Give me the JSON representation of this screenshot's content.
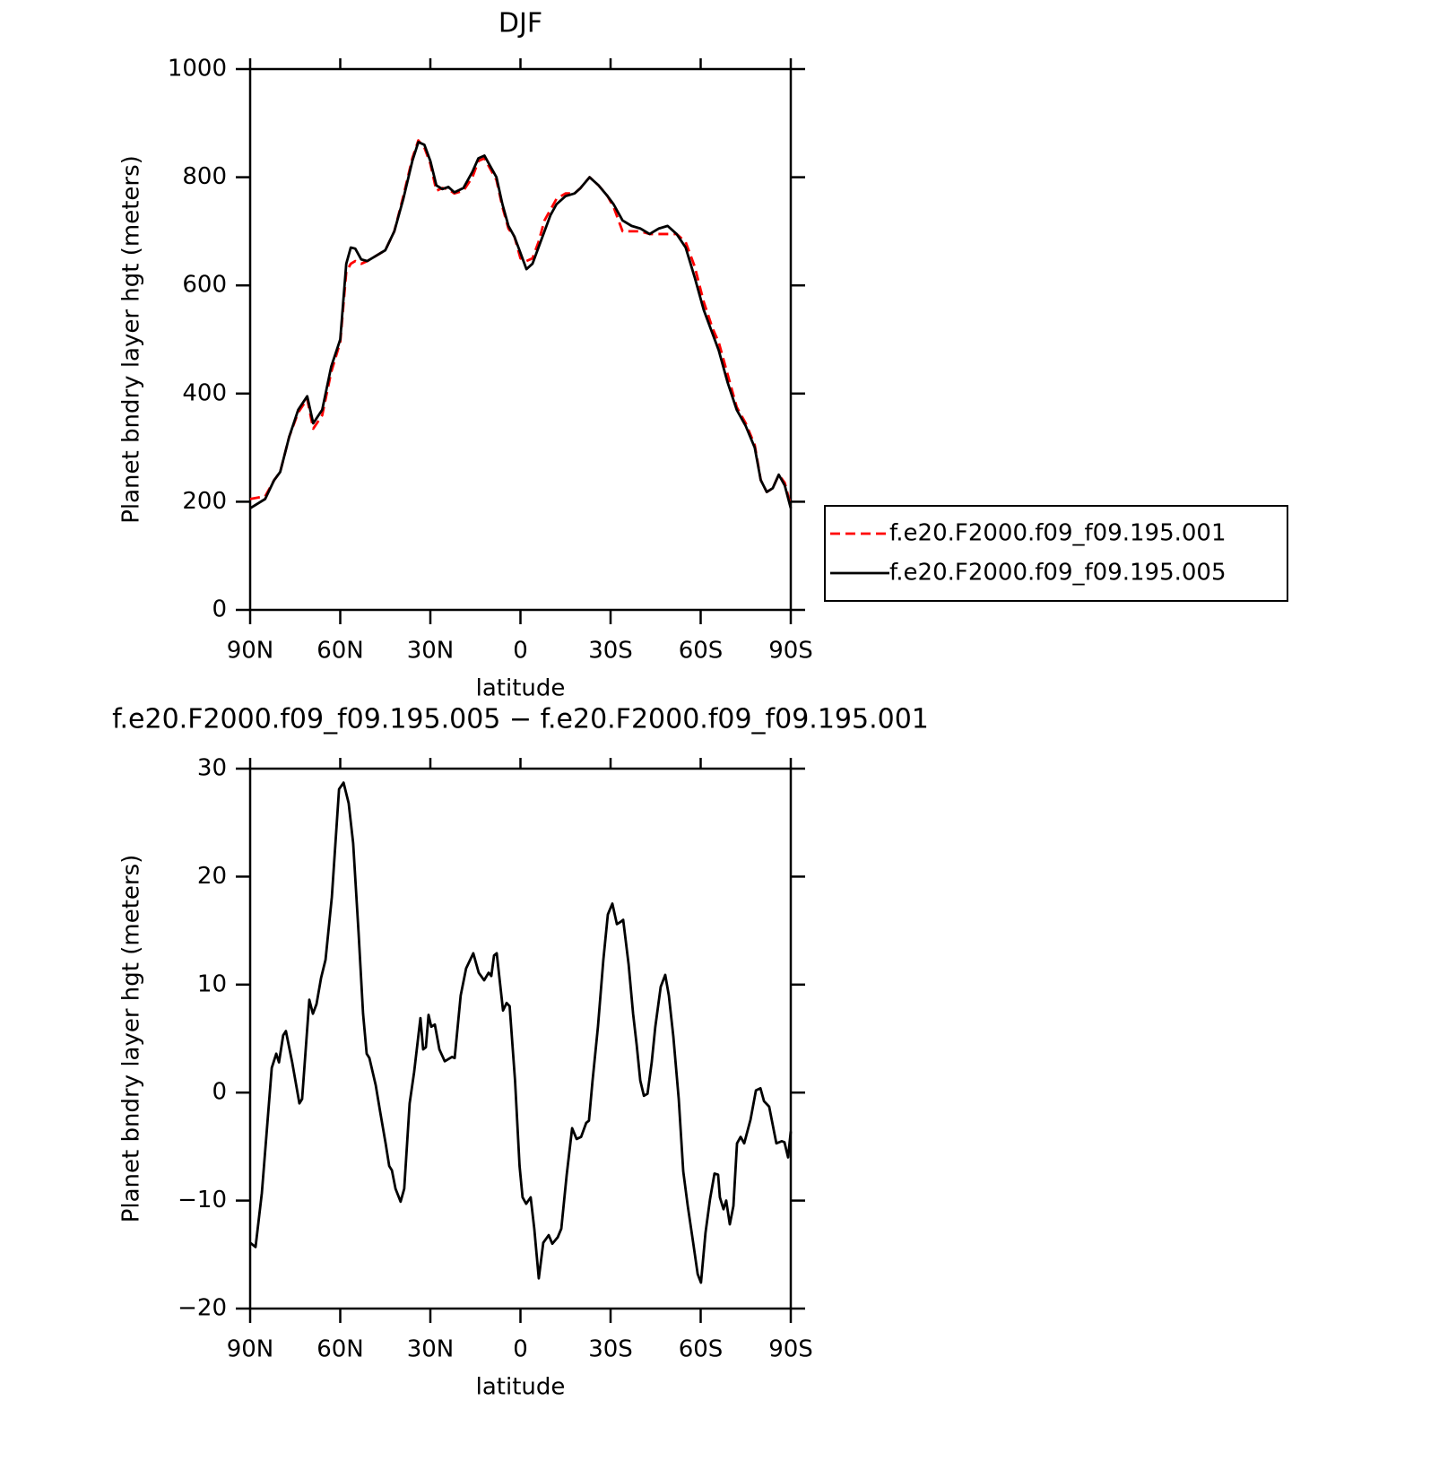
{
  "chart_data": [
    {
      "type": "line",
      "title": "DJF",
      "xlabel": "latitude",
      "ylabel": "Planet bndry layer hgt (meters)",
      "x": [
        90,
        85,
        82,
        80,
        77,
        74,
        71,
        69,
        66,
        63,
        60,
        58,
        56.5,
        55,
        53,
        51,
        48,
        45,
        42,
        39,
        36,
        34,
        32,
        30,
        28,
        26,
        24,
        22,
        19,
        16,
        14,
        12,
        10,
        8,
        6,
        4,
        2,
        0,
        -2,
        -4,
        -6,
        -8,
        -10,
        -12,
        -15,
        -18,
        -20,
        -23,
        -26,
        -29,
        -31,
        -34,
        -37,
        -40,
        -43,
        -46,
        -49,
        -52,
        -55,
        -58,
        -61,
        -64,
        -66,
        -69,
        -72,
        -75,
        -78,
        -80,
        -82,
        -84,
        -86,
        -88,
        -90
      ],
      "series": [
        {
          "name": "f.e20.F2000.f09_f09.195.001",
          "color": "#ff0000",
          "dash": true,
          "values": [
            205,
            210,
            240,
            255,
            320,
            365,
            390,
            335,
            360,
            440,
            495,
            625,
            640,
            645,
            640,
            645,
            655,
            665,
            700,
            765,
            835,
            868,
            855,
            825,
            775,
            780,
            778,
            770,
            775,
            800,
            830,
            835,
            815,
            795,
            745,
            705,
            690,
            650,
            645,
            650,
            680,
            720,
            740,
            760,
            770,
            770,
            780,
            800,
            785,
            765,
            745,
            700,
            700,
            700,
            695,
            695,
            695,
            695,
            680,
            635,
            570,
            520,
            495,
            435,
            375,
            345,
            305,
            240,
            218,
            225,
            250,
            235,
            192
          ]
        },
        {
          "name": "f.e20.F2000.f09_f09.195.005",
          "color": "#000000",
          "dash": false,
          "values": [
            188,
            205,
            240,
            255,
            320,
            370,
            395,
            345,
            370,
            450,
            500,
            640,
            670,
            668,
            648,
            645,
            655,
            665,
            700,
            760,
            830,
            865,
            860,
            830,
            785,
            778,
            782,
            772,
            780,
            810,
            835,
            840,
            820,
            800,
            750,
            710,
            690,
            660,
            630,
            640,
            670,
            700,
            730,
            750,
            765,
            770,
            780,
            800,
            785,
            765,
            750,
            720,
            710,
            705,
            695,
            705,
            710,
            695,
            670,
            615,
            555,
            510,
            480,
            420,
            370,
            340,
            300,
            240,
            218,
            225,
            250,
            230,
            188
          ]
        }
      ],
      "xlim": [
        90,
        -90
      ],
      "ylim": [
        0,
        1000
      ],
      "xticks": [
        {
          "value": 90,
          "label": "90N"
        },
        {
          "value": 60,
          "label": "60N"
        },
        {
          "value": 30,
          "label": "30N"
        },
        0,
        {
          "value": -30,
          "label": "30S"
        },
        {
          "value": -60,
          "label": "60S"
        },
        {
          "value": -90,
          "label": "90S"
        }
      ],
      "yticks": [
        0,
        200,
        400,
        600,
        800,
        1000
      ],
      "legend": "right"
    },
    {
      "type": "line",
      "title": "f.e20.F2000.f09_f09.195.005 − f.e20.F2000.f09_f09.195.001",
      "xlabel": "latitude",
      "ylabel": "Planet bndry layer hgt (meters)",
      "x": [
        90,
        88.2,
        86.1,
        82.8,
        81.3,
        80.4,
        79,
        78.1,
        76,
        73.6,
        72.7,
        70.3,
        69.1,
        67.9,
        66.4,
        64.9,
        62.8,
        60.4,
        58.9,
        57.2,
        55.7,
        53.9,
        52.4,
        51.2,
        50.3,
        48.2,
        46.7,
        44.9,
        43.7,
        42.8,
        41.6,
        39.9,
        38.7,
        36.9,
        35.4,
        33.3,
        32.4,
        31.5,
        30.6,
        29.7,
        28.5,
        27,
        25.2,
        22.8,
        21.9,
        19.9,
        18.1,
        15.7,
        13.9,
        12.1,
        10.6,
        9.7,
        8.8,
        7.9,
        5.8,
        4.6,
        3.6,
        1.8,
        0.3,
        -0.7,
        -1.9,
        -3.4,
        -4.6,
        -6.1,
        -7.6,
        -9.4,
        -10.6,
        -12.4,
        -13.6,
        -15.4,
        -17.2,
        -18.7,
        -20.2,
        -21.9,
        -22.8,
        -24,
        -25.8,
        -27.6,
        -29.1,
        -30.6,
        -32.1,
        -33.3,
        -34.2,
        -36,
        -37.5,
        -38.7,
        -39.9,
        -41.1,
        -42.3,
        -43.7,
        -44.9,
        -46.7,
        -48.2,
        -49.4,
        -50.9,
        -52.7,
        -54.2,
        -55.7,
        -57.5,
        -59,
        -60.1,
        -61.6,
        -63.1,
        -64.6,
        -65.8,
        -66.4,
        -67.6,
        -68.5,
        -69.7,
        -70.9,
        -72.1,
        -73.3,
        -74.5,
        -76.6,
        -78.4,
        -79.9,
        -81.1,
        -82.8,
        -85.2,
        -87,
        -87.9,
        -89.1,
        -90
      ],
      "series": [
        {
          "color": "#000000",
          "dash": false,
          "values": [
            -13.9,
            -14.3,
            -9.3,
            2.3,
            3.6,
            2.8,
            5.3,
            5.7,
            2.8,
            -1.0,
            -0.6,
            8.6,
            7.3,
            8.2,
            10.6,
            12.3,
            18.1,
            28.1,
            28.7,
            26.8,
            23.1,
            14.8,
            7.3,
            3.6,
            3.2,
            0.7,
            -1.8,
            -4.7,
            -6.8,
            -7.2,
            -8.9,
            -10.1,
            -8.9,
            -1.0,
            1.9,
            6.9,
            4.0,
            4.2,
            7.2,
            6.1,
            6.3,
            4.0,
            2.9,
            3.3,
            3.2,
            9.0,
            11.5,
            12.9,
            11.1,
            10.4,
            11.1,
            10.8,
            12.7,
            12.9,
            7.6,
            8.3,
            8.0,
            1.1,
            -6.8,
            -9.7,
            -10.3,
            -9.7,
            -12.6,
            -17.2,
            -13.9,
            -13.2,
            -14.0,
            -13.4,
            -12.6,
            -7.6,
            -3.3,
            -4.3,
            -4.1,
            -2.8,
            -2.6,
            1.1,
            6.1,
            12.3,
            16.5,
            17.5,
            15.6,
            15.8,
            16.0,
            11.9,
            7.3,
            4.4,
            1.1,
            -0.3,
            -0.1,
            2.8,
            6.1,
            9.8,
            10.9,
            9.0,
            5.2,
            -0.6,
            -7.3,
            -10.5,
            -13.9,
            -16.8,
            -17.6,
            -13.0,
            -9.9,
            -7.5,
            -7.6,
            -9.7,
            -10.8,
            -10.0,
            -12.2,
            -10.5,
            -4.7,
            -4.1,
            -4.7,
            -2.5,
            0.2,
            0.4,
            -0.8,
            -1.3,
            -4.7,
            -4.5,
            -4.6,
            -6.0,
            -3.6
          ]
        }
      ],
      "xlim": [
        90,
        -90
      ],
      "ylim": [
        -20,
        30
      ],
      "xticks": [
        {
          "value": 90,
          "label": "90N"
        },
        {
          "value": 60,
          "label": "60N"
        },
        {
          "value": 30,
          "label": "30N"
        },
        0,
        {
          "value": -30,
          "label": "30S"
        },
        {
          "value": -60,
          "label": "60S"
        },
        {
          "value": -90,
          "label": "90S"
        }
      ],
      "yticks": [
        {
          "value": -20,
          "label": "−20"
        },
        {
          "value": -10,
          "label": "−10"
        },
        0,
        10,
        20,
        30
      ]
    }
  ]
}
